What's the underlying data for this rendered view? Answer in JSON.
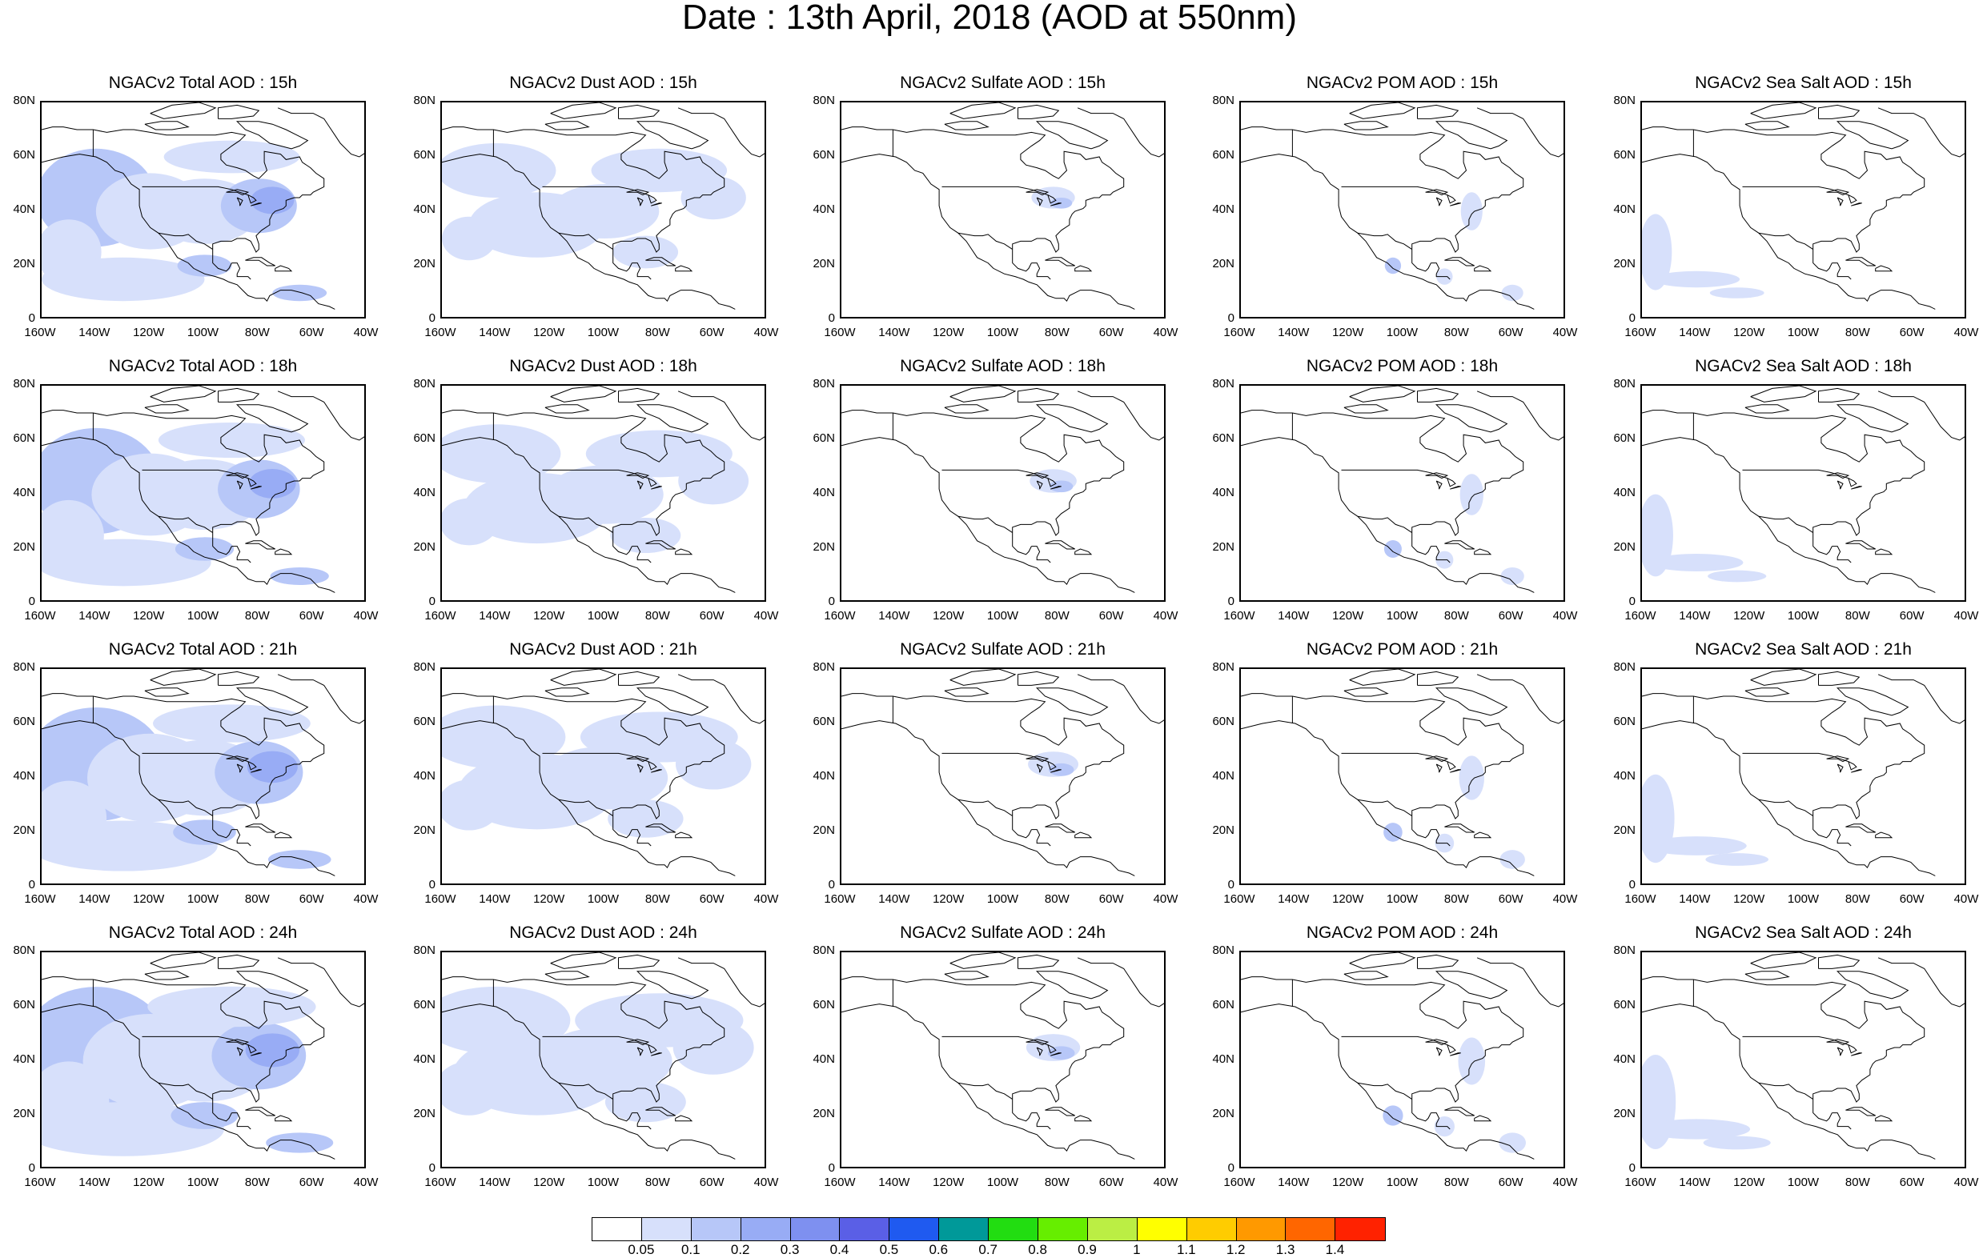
{
  "title": "Date : 13th April, 2018 (AOD at 550nm)",
  "lat_labels": [
    "80N",
    "60N",
    "40N",
    "20N",
    "0"
  ],
  "lon_labels": [
    "160W",
    "140W",
    "120W",
    "100W",
    "80W",
    "60W",
    "40W"
  ],
  "columns": [
    {
      "key": "total",
      "name": "Total"
    },
    {
      "key": "dust",
      "name": "Dust"
    },
    {
      "key": "sulfate",
      "name": "Sulfate"
    },
    {
      "key": "pom",
      "name": "POM"
    },
    {
      "key": "seasalt",
      "name": "Sea Salt"
    }
  ],
  "panels": [
    [
      "NGACv2 Total AOD : 15h",
      "NGACv2 Dust AOD : 15h",
      "NGACv2 Sulfate AOD : 15h",
      "NGACv2 POM AOD : 15h",
      "NGACv2 Sea Salt AOD : 15h"
    ],
    [
      "NGACv2 Total AOD : 18h",
      "NGACv2 Dust AOD : 18h",
      "NGACv2 Sulfate AOD : 18h",
      "NGACv2 POM AOD : 18h",
      "NGACv2 Sea Salt AOD : 18h"
    ],
    [
      "NGACv2 Total AOD : 21h",
      "NGACv2 Dust AOD : 21h",
      "NGACv2 Sulfate AOD : 21h",
      "NGACv2 POM AOD : 21h",
      "NGACv2 Sea Salt AOD : 21h"
    ],
    [
      "NGACv2 Total AOD : 24h",
      "NGACv2 Dust AOD : 24h",
      "NGACv2 Sulfate AOD : 24h",
      "NGACv2 POM AOD : 24h",
      "NGACv2 Sea Salt  AOD : 24h"
    ]
  ],
  "map_extent": {
    "lon_min": -160,
    "lon_max": -40,
    "lat_min": 0,
    "lat_max": 80
  },
  "colorbar": {
    "labels": [
      "0.05",
      "0.1",
      "0.2",
      "0.3",
      "0.4",
      "0.5",
      "0.6",
      "0.7",
      "0.8",
      "0.9",
      "1",
      "1.1",
      "1.2",
      "1.3",
      "1.4"
    ],
    "colors": [
      "#ffffff",
      "#d7e0fb",
      "#b7c7f8",
      "#98acf5",
      "#7e90f0",
      "#5a5fe6",
      "#1f5af0",
      "#009999",
      "#22dd11",
      "#66ee00",
      "#bbee44",
      "#ffff00",
      "#ffcc00",
      "#ff9900",
      "#ff6600",
      "#ff2200"
    ]
  },
  "colors": {
    "light": "#d7e0fb",
    "mid": "#b7c7f8",
    "strong": "#98acf5",
    "coast": "#000000"
  }
}
